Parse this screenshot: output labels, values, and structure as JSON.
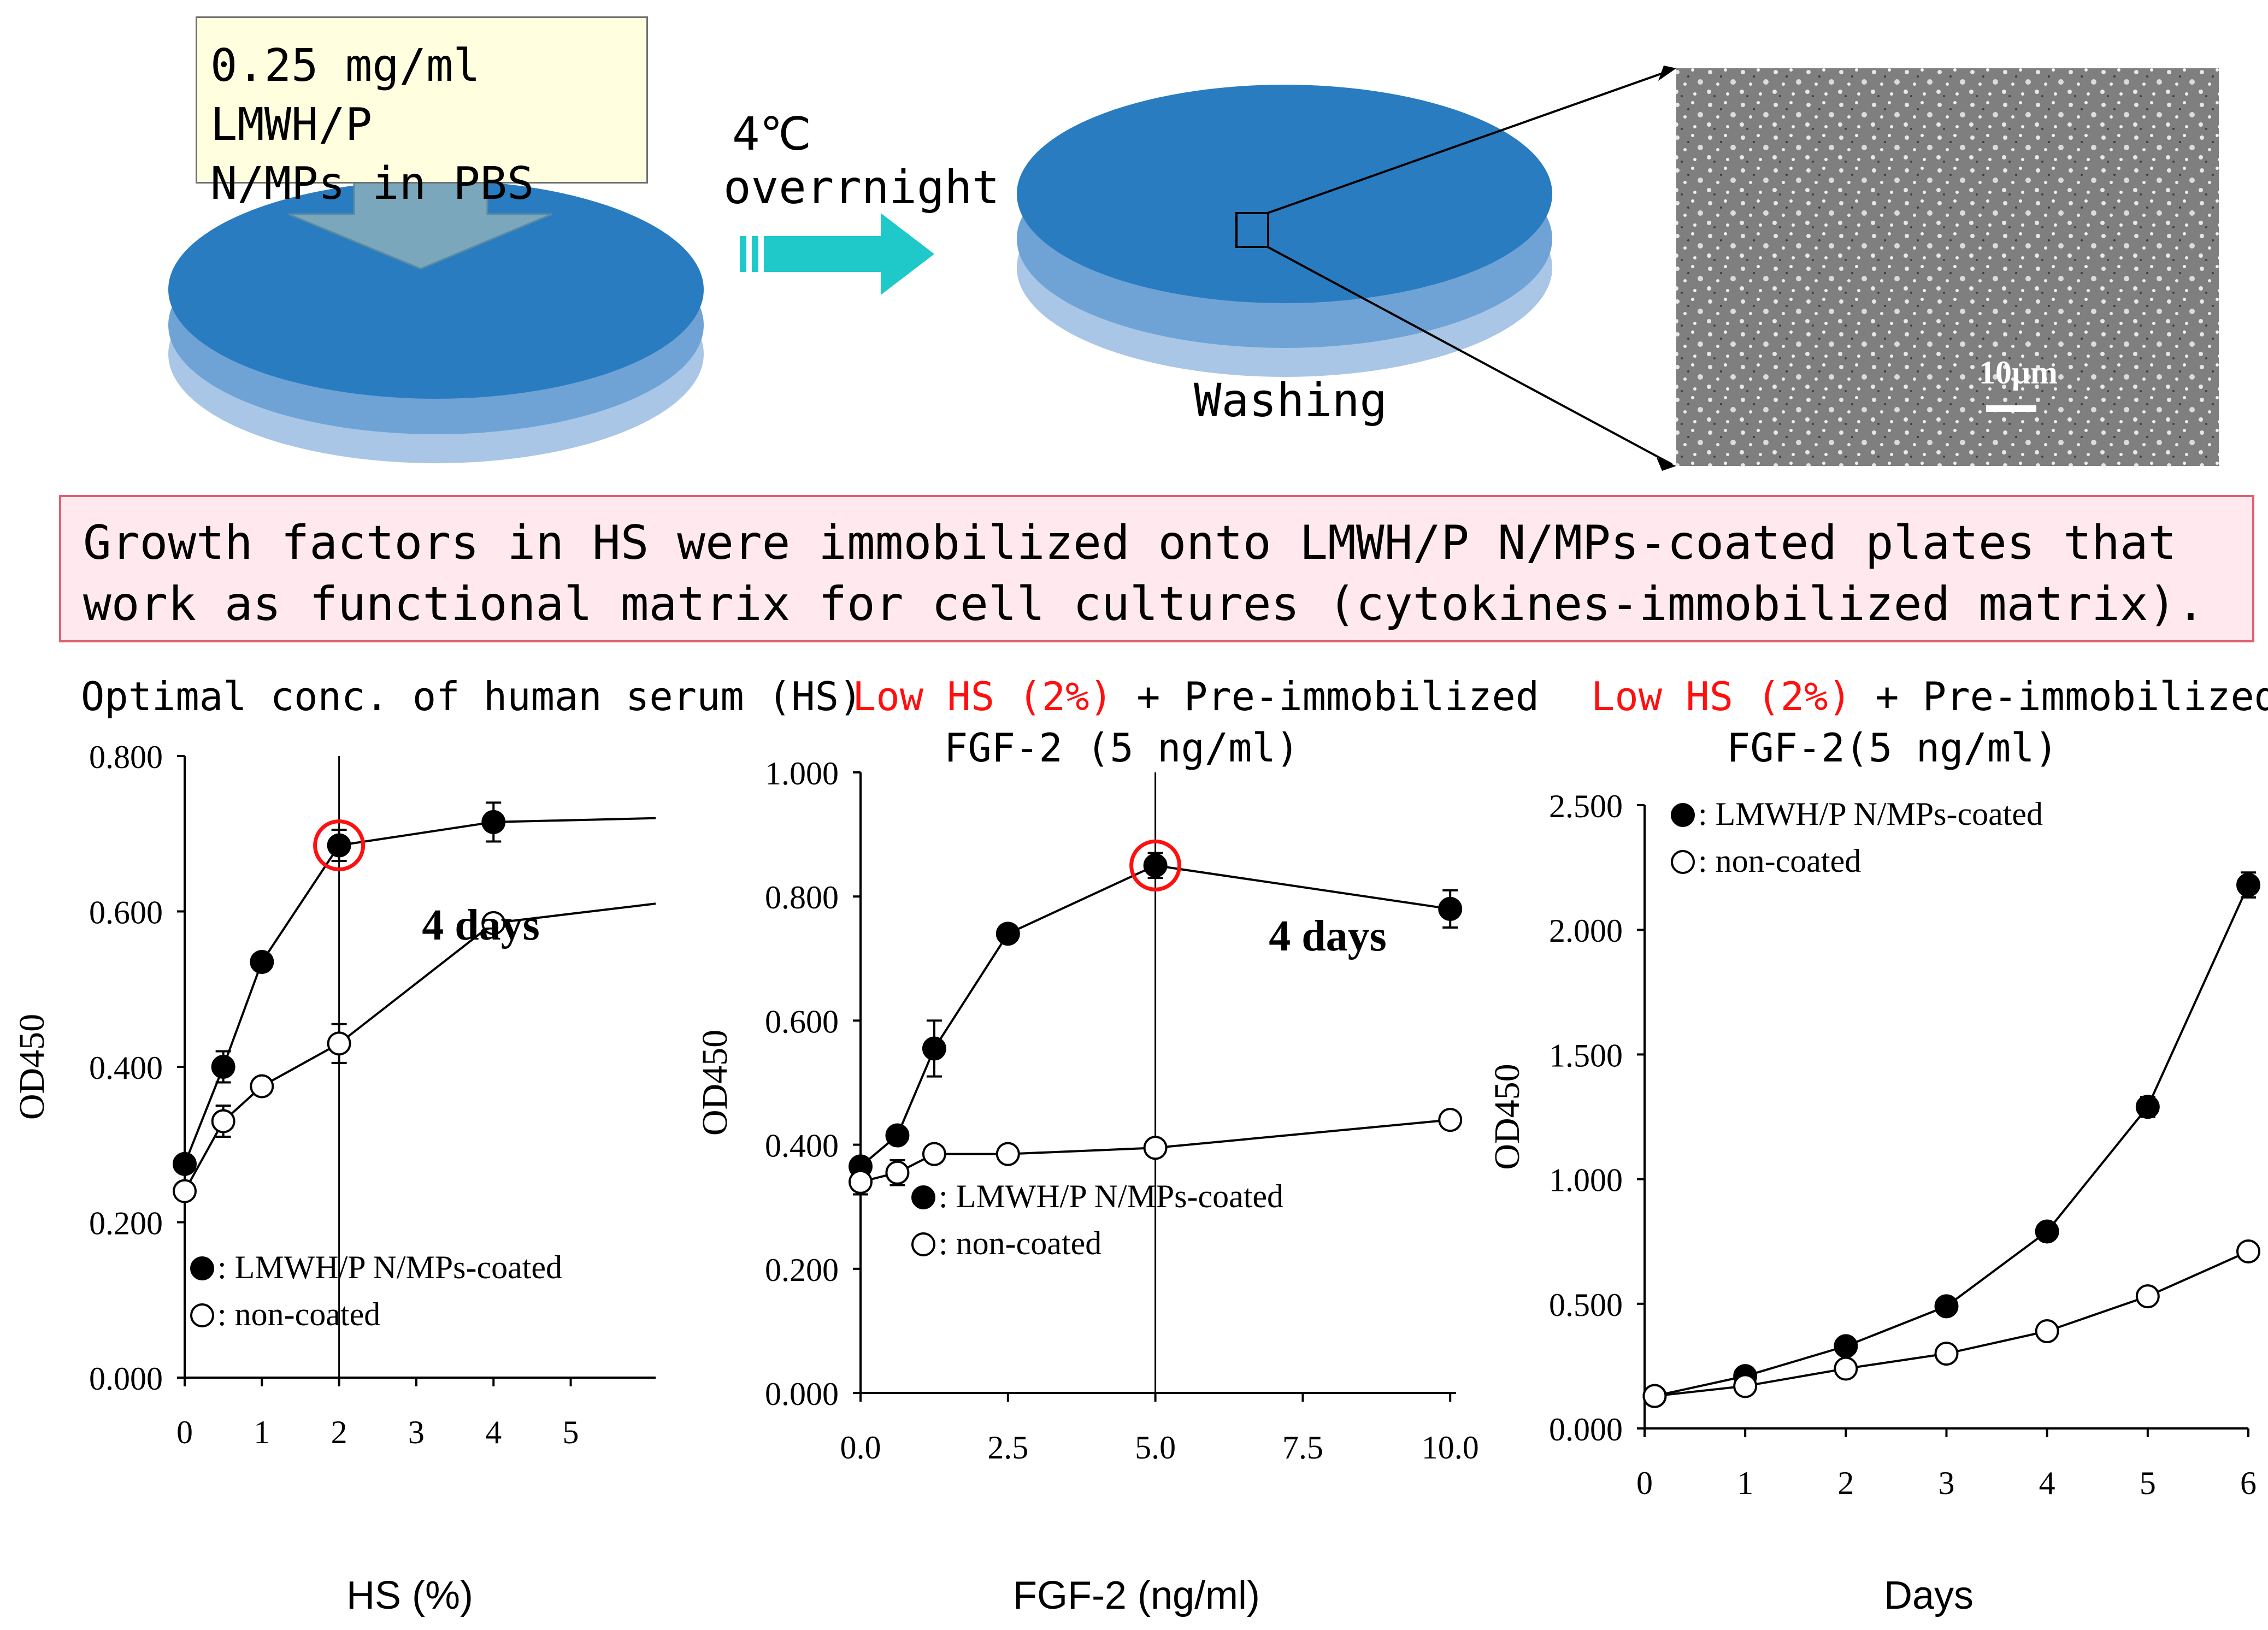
{
  "schematic": {
    "solution_label": "0.25 mg/ml LMWH/P\nN/MPs in PBS",
    "incubation_temp": "4℃",
    "incubation_time": "overrnight",
    "wash_label": "Washing",
    "scale_bar": "10μm",
    "colors": {
      "plate_top": "#2a7cc0",
      "plate_mid": "#6fa3d6",
      "plate_bottom": "#a9c6e6",
      "arrow": "#20c9c9",
      "micro_bg": "#808080"
    }
  },
  "summary": "Growth factors in HS were immobilized onto LMWH/P N/MPs-coated plates that work as functional matrix for cell cultures (cytokines-immobilized matrix).",
  "panels": [
    {
      "title": "Optimal conc. of human serum (HS)",
      "title_red": "",
      "title_rest": "",
      "subtitle": ""
    },
    {
      "title": "",
      "title_red": "Low HS (2%)",
      "title_rest": " + Pre-immobilized",
      "subtitle": "FGF-2 (5 ng/ml)"
    },
    {
      "title": "",
      "title_red": "Low HS (2%)",
      "title_rest": " + Pre-immobilized",
      "subtitle": "FGF-2(5 ng/ml)"
    }
  ],
  "chart_data": [
    {
      "type": "line",
      "xlabel": "HS (%)",
      "ylabel": "OD450",
      "annotation": "4 days",
      "xlim": [
        0,
        6.1
      ],
      "ylim": [
        0,
        0.8
      ],
      "xticks": [
        "0",
        "1",
        "2",
        "3",
        "4",
        "5"
      ],
      "yticks": [
        "0.000",
        "0.200",
        "0.400",
        "0.600",
        "0.800"
      ],
      "legend": [
        "●: LMWH/P  N/MPs-coated",
        "○: non-coated"
      ],
      "legend_position": "bottom-left",
      "highlight": {
        "series": 0,
        "x": 2
      },
      "vline_x": 2,
      "series": [
        {
          "name": "LMWH/P N/MPs-coated",
          "marker": "filled",
          "x": [
            0,
            0.5,
            1,
            2,
            4,
            6.1
          ],
          "y": [
            0.275,
            0.4,
            0.535,
            0.685,
            0.715,
            0.72
          ],
          "error": [
            0.01,
            0.02,
            0.01,
            0.02,
            0.025,
            0
          ]
        },
        {
          "name": "non-coated",
          "marker": "open",
          "x": [
            0,
            0.5,
            1,
            2,
            4,
            6.1
          ],
          "y": [
            0.24,
            0.33,
            0.375,
            0.43,
            0.585,
            0.61
          ],
          "error": [
            0.01,
            0.02,
            0.01,
            0.025,
            0.01,
            0
          ]
        }
      ]
    },
    {
      "type": "line",
      "xlabel": "FGF-2 (ng/ml)",
      "ylabel": "OD450",
      "annotation": "4 days",
      "xlim": [
        0,
        10.1
      ],
      "ylim": [
        0,
        1.0
      ],
      "xticks": [
        "0.0",
        "2.5",
        "5.0",
        "7.5",
        "10.0"
      ],
      "yticks": [
        "0.000",
        "0.200",
        "0.400",
        "0.600",
        "0.800",
        "1.000"
      ],
      "legend": [
        "●: LMWH/P N/MPs-coated",
        "○: non-coated"
      ],
      "legend_position": "bottom-center",
      "highlight": {
        "series": 0,
        "x": 5
      },
      "vline_x": 5,
      "series": [
        {
          "name": "LMWH/P N/MPs-coated",
          "marker": "filled",
          "x": [
            0,
            0.625,
            1.25,
            2.5,
            5,
            10
          ],
          "y": [
            0.365,
            0.415,
            0.555,
            0.74,
            0.85,
            0.78
          ],
          "error": [
            0.01,
            0.01,
            0.045,
            0.01,
            0.02,
            0.03
          ]
        },
        {
          "name": "non-coated",
          "marker": "open",
          "x": [
            0,
            0.625,
            1.25,
            2.5,
            5,
            10
          ],
          "y": [
            0.34,
            0.355,
            0.385,
            0.385,
            0.395,
            0.44
          ],
          "error": [
            0.02,
            0.02,
            0.01,
            0.01,
            0.01,
            0.01
          ]
        }
      ]
    },
    {
      "type": "line",
      "xlabel": "Days",
      "ylabel": "OD450",
      "annotation": "",
      "xlim": [
        0,
        6
      ],
      "ylim": [
        0,
        2.5
      ],
      "xticks": [
        "0",
        "1",
        "2",
        "3",
        "4",
        "5",
        "6"
      ],
      "yticks": [
        "0.000",
        "0.500",
        "1.000",
        "1.500",
        "2.000",
        "2.500"
      ],
      "legend": [
        "●: LMWH/P N/MPs-coated",
        "○: non-coated"
      ],
      "legend_position": "top-left",
      "highlight": null,
      "vline_x": null,
      "series": [
        {
          "name": "LMWH/P N/MPs-coated",
          "marker": "filled",
          "x": [
            0.1,
            1,
            2,
            3,
            4,
            5,
            6
          ],
          "y": [
            0.13,
            0.21,
            0.33,
            0.49,
            0.79,
            1.29,
            2.18
          ],
          "error": [
            0,
            0,
            0.01,
            0.01,
            0.02,
            0.04,
            0.05
          ]
        },
        {
          "name": "non-coated",
          "marker": "open",
          "x": [
            0.1,
            1,
            2,
            3,
            4,
            5,
            6
          ],
          "y": [
            0.13,
            0.17,
            0.24,
            0.3,
            0.39,
            0.53,
            0.71
          ],
          "error": [
            0,
            0,
            0,
            0.01,
            0.01,
            0.01,
            0.01
          ]
        }
      ]
    }
  ]
}
